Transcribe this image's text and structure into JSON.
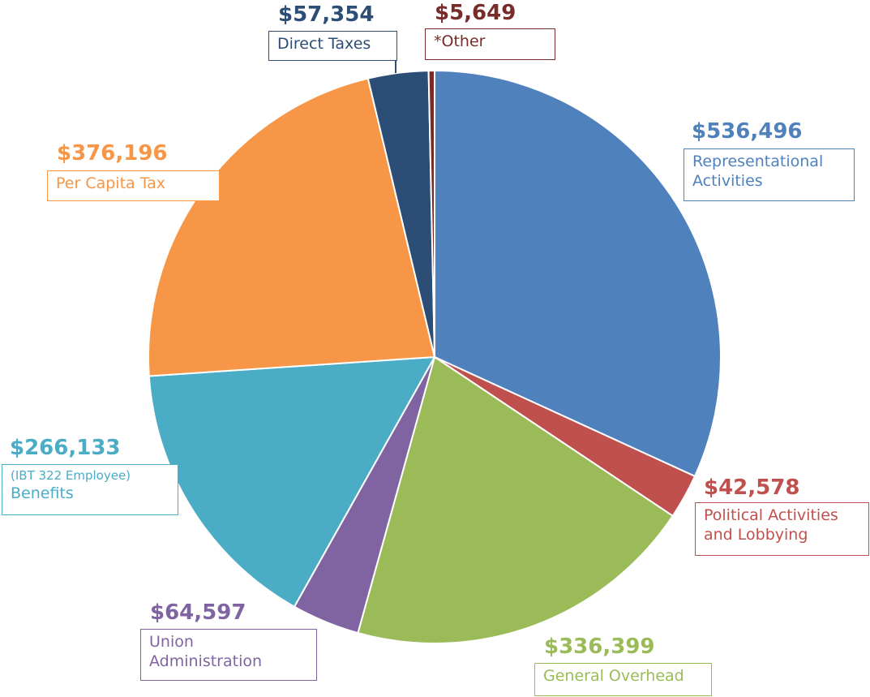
{
  "chart_data": {
    "type": "pie",
    "slices": [
      {
        "key": "representational",
        "value": 536496,
        "value_label": "$536,496",
        "label_lines": [
          "Representational",
          "Activities"
        ],
        "color": "#4F81BD"
      },
      {
        "key": "political",
        "value": 42578,
        "value_label": "$42,578",
        "label_lines": [
          "Political Activities",
          "and Lobbying"
        ],
        "color": "#C0504D"
      },
      {
        "key": "general",
        "value": 336399,
        "value_label": "$336,399",
        "label_lines": [
          "General Overhead"
        ],
        "color": "#9BBB59"
      },
      {
        "key": "union",
        "value": 64597,
        "value_label": "$64,597",
        "label_lines": [
          "Union",
          "Administration"
        ],
        "color": "#8064A2"
      },
      {
        "key": "benefits",
        "value": 266133,
        "value_label": "$266,133",
        "label_prefix": "(IBT 322 Employee)",
        "label_lines": [
          "Benefits"
        ],
        "color": "#4BACC6"
      },
      {
        "key": "percapita",
        "value": 376196,
        "value_label": "$376,196",
        "label_lines": [
          "Per Capita Tax"
        ],
        "color": "#F79646"
      },
      {
        "key": "direct",
        "value": 57354,
        "value_label": "$57,354",
        "label_lines": [
          "Direct Taxes"
        ],
        "color": "#2C4D75"
      },
      {
        "key": "other",
        "value": 5649,
        "value_label": "$5,649",
        "label_lines": [
          "*Other"
        ],
        "color": "#772C2A"
      }
    ],
    "start_angle": "12 o'clock",
    "direction": "clockwise",
    "legend": "none (direct labels)"
  }
}
